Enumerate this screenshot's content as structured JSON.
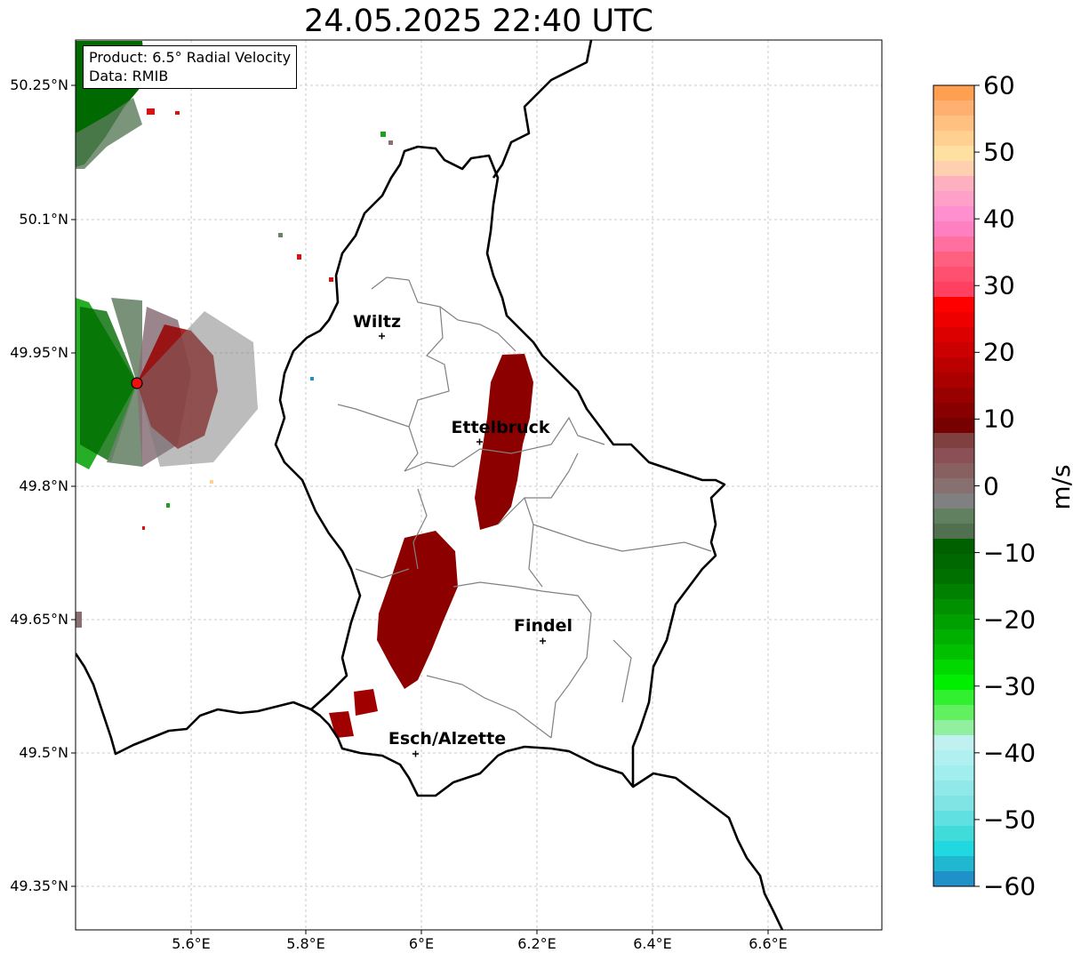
{
  "title": "24.05.2025 22:40 UTC",
  "info": {
    "product": "Product: 6.5° Radial Velocity",
    "data": "Data: RMIB"
  },
  "axes": {
    "lat_ticks": [
      "50.25°N",
      "50.1°N",
      "49.95°N",
      "49.8°N",
      "49.65°N",
      "49.5°N",
      "49.35°N"
    ],
    "lon_ticks": [
      "5.6°E",
      "5.8°E",
      "6°E",
      "6.2°E",
      "6.4°E",
      "6.6°E"
    ]
  },
  "cities": [
    {
      "name": "Wiltz",
      "lon": 5.93,
      "lat": 49.966
    },
    {
      "name": "Ettelbruck",
      "lon": 6.1,
      "lat": 49.847
    },
    {
      "name": "Findel",
      "lon": 6.21,
      "lat": 49.626
    },
    {
      "name": "Esch/Alzette",
      "lon": 5.99,
      "lat": 49.496
    }
  ],
  "radar": {
    "name": "radar-site",
    "lon": 5.505,
    "lat": 49.914
  },
  "colorbar": {
    "unit": "m/s",
    "ticks": [
      "60",
      "50",
      "40",
      "30",
      "20",
      "10",
      "0",
      "−10",
      "−20",
      "−30",
      "−40",
      "−50",
      "−60"
    ],
    "min": -60,
    "max": 60,
    "colors_top_to_bottom": [
      "#ffa050",
      "#ffb070",
      "#ffc080",
      "#ffd090",
      "#ffe0a0",
      "#ffd0b0",
      "#ffb0c0",
      "#ffa0c8",
      "#ff90d0",
      "#ff80c0",
      "#ff70a0",
      "#ff6080",
      "#ff5070",
      "#ff4060",
      "#ff0000",
      "#ee0000",
      "#dd0000",
      "#cc0000",
      "#bb0000",
      "#aa0000",
      "#990000",
      "#880000",
      "#770000",
      "#804040",
      "#8a5055",
      "#886060",
      "#887070",
      "#808080",
      "#608060",
      "#507050",
      "#006000",
      "#006800",
      "#007000",
      "#008000",
      "#009000",
      "#00a000",
      "#00b000",
      "#00c000",
      "#00d800",
      "#00ee00",
      "#30f030",
      "#60f060",
      "#90f0a0",
      "#c0f0f0",
      "#b0f0f0",
      "#a0eeee",
      "#90e8e8",
      "#80e4e4",
      "#60e0e0",
      "#40dcdc",
      "#20d8e0",
      "#20b8d0",
      "#2090c8"
    ]
  }
}
